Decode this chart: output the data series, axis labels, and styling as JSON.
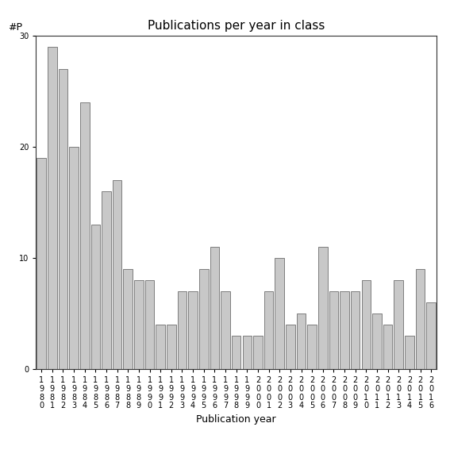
{
  "title": "Publications per year in class",
  "xlabel": "Publication year",
  "ylabel": "#P",
  "years": [
    "1980",
    "1981",
    "1982",
    "1983",
    "1984",
    "1985",
    "1986",
    "1987",
    "1988",
    "1989",
    "1990",
    "1991",
    "1992",
    "1993",
    "1994",
    "1995",
    "1996",
    "1997",
    "1998",
    "1999",
    "2000",
    "2001",
    "2002",
    "2003",
    "2004",
    "2005",
    "2006",
    "2007",
    "2008",
    "2009",
    "2010",
    "2011",
    "2012",
    "2013",
    "2014",
    "2015",
    "2016"
  ],
  "values": [
    19,
    29,
    27,
    20,
    24,
    13,
    16,
    17,
    9,
    8,
    8,
    4,
    4,
    7,
    7,
    9,
    11,
    7,
    3,
    3,
    3,
    7,
    10,
    4,
    5,
    4,
    11,
    7,
    7,
    7,
    8,
    5,
    4,
    8,
    3,
    9,
    6
  ],
  "bar_color": "#c8c8c8",
  "bar_edgecolor": "#555555",
  "background_color": "#ffffff",
  "ylim": [
    0,
    30
  ],
  "yticks": [
    0,
    10,
    20,
    30
  ],
  "title_fontsize": 11,
  "axis_label_fontsize": 9,
  "tick_fontsize": 7
}
